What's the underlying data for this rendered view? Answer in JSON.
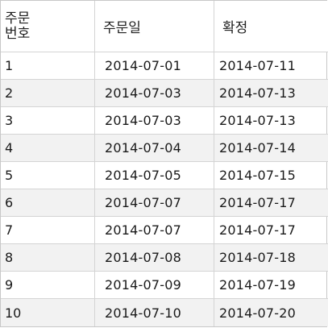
{
  "table": {
    "headers": {
      "order_no": "주문\n번호",
      "order_date": "주문일",
      "confirm": "확정"
    },
    "rows": [
      {
        "no": "1",
        "order_date": "2014-07-01",
        "confirm": "2014-07-11"
      },
      {
        "no": "2",
        "order_date": "2014-07-03",
        "confirm": "2014-07-13"
      },
      {
        "no": "3",
        "order_date": "2014-07-03",
        "confirm": "2014-07-13"
      },
      {
        "no": "4",
        "order_date": "2014-07-04",
        "confirm": "2014-07-14"
      },
      {
        "no": "5",
        "order_date": "2014-07-05",
        "confirm": "2014-07-15"
      },
      {
        "no": "6",
        "order_date": "2014-07-07",
        "confirm": "2014-07-17"
      },
      {
        "no": "7",
        "order_date": "2014-07-07",
        "confirm": "2014-07-17"
      },
      {
        "no": "8",
        "order_date": "2014-07-08",
        "confirm": "2014-07-18"
      },
      {
        "no": "9",
        "order_date": "2014-07-09",
        "confirm": "2014-07-19"
      },
      {
        "no": "10",
        "order_date": "2014-07-10",
        "confirm": "2014-07-20"
      }
    ]
  },
  "colors": {
    "row_alt": "#f2f2f2",
    "grid_line": "#d4d4d4",
    "text": "#1a1a1a"
  }
}
